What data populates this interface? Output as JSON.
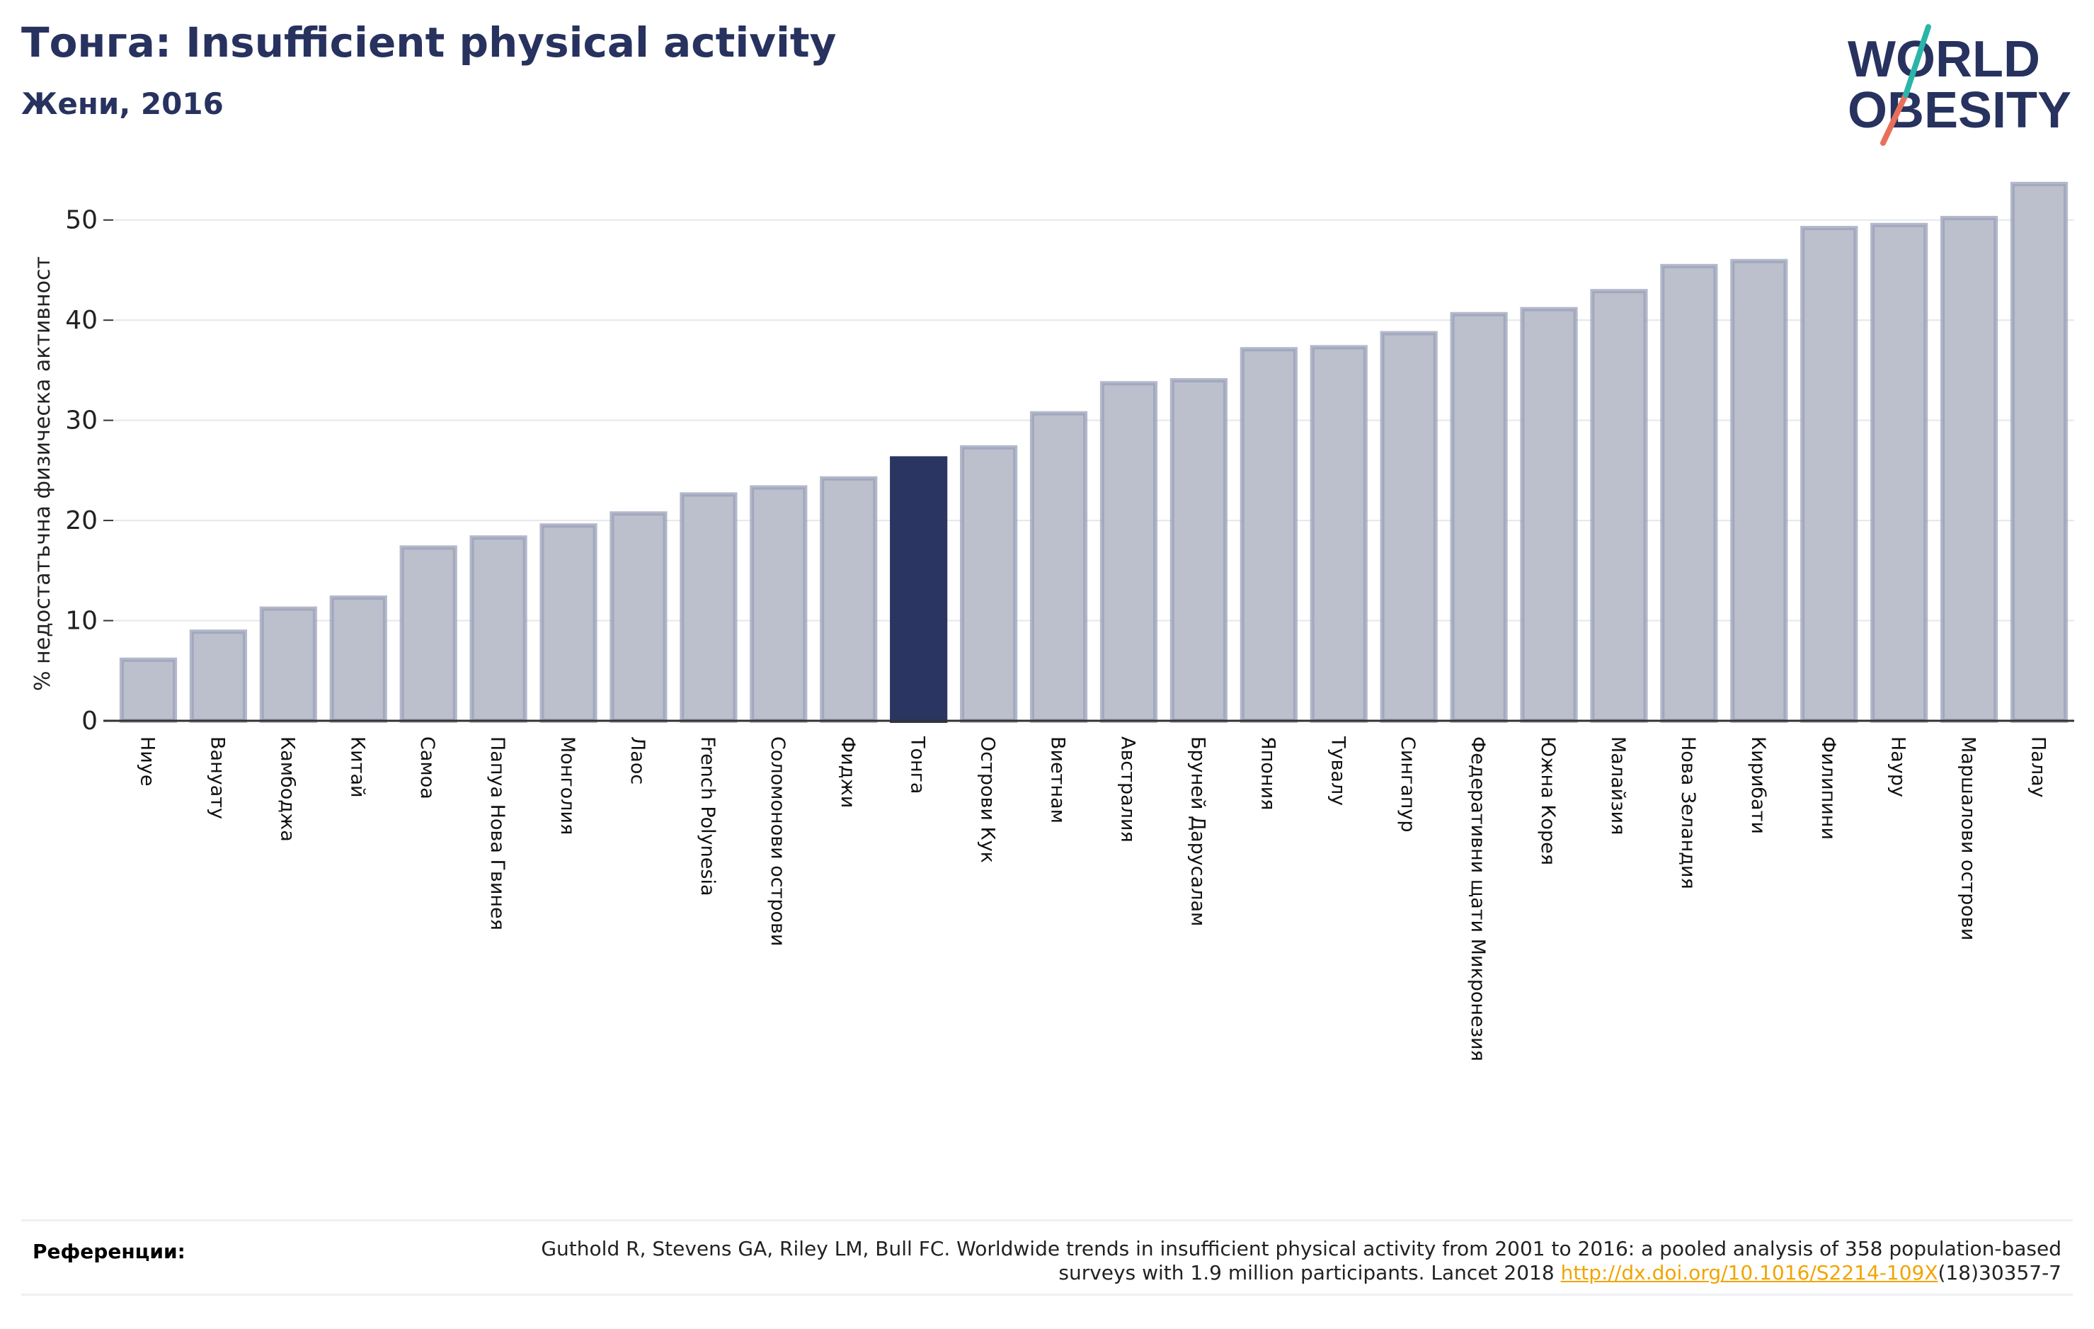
{
  "header": {
    "title": "Тонга: Insufficient physical activity",
    "subtitle": "Жени, 2016"
  },
  "logo": {
    "line1": "WORLD",
    "line2": "OBESITY"
  },
  "chart_data": {
    "type": "bar",
    "ylabel": "% недостатъчна физическа активност",
    "ylim": [
      0,
      55
    ],
    "yticks": [
      0,
      10,
      20,
      30,
      40,
      50
    ],
    "grid": true,
    "highlight": "Тонга",
    "categories": [
      "Ниуе",
      "Вануату",
      "Камбоджа",
      "Китай",
      "Самоа",
      "Папуа Нова Гвинея",
      "Монголия",
      "Лаос",
      "French Polynesia",
      "Соломонови острови",
      "Фиджи",
      "Тонга",
      "Острови Кук",
      "Виетнам",
      "Австралия",
      "Бруней Дарусалам",
      "Япония",
      "Тувалу",
      "Сингапур",
      "Федеративни щати Микронезия",
      "Южна Корея",
      "Малайзия",
      "Нова Зеландия",
      "Кирибати",
      "Филипини",
      "Науру",
      "Маршалови острови",
      "Палау"
    ],
    "values": [
      6.1,
      8.9,
      11.2,
      12.3,
      17.3,
      18.3,
      19.5,
      20.7,
      22.6,
      23.3,
      24.2,
      26.2,
      27.3,
      30.7,
      33.7,
      34.0,
      37.1,
      37.3,
      38.7,
      40.6,
      41.1,
      42.9,
      45.4,
      45.9,
      49.2,
      49.5,
      50.2,
      53.6
    ],
    "colors": {
      "bar": "#bcbfcc",
      "bar_edge": "#9aa0b8",
      "highlight": "#2a3561",
      "grid": "#e6e7ec",
      "axis": "#333333"
    }
  },
  "references": {
    "label": "Референции:",
    "text_before": "Guthold R, Stevens GA, Riley LM, Bull FC. Worldwide trends in insufficient physical activity from 2001 to 2016: a pooled analysis of 358 population-based surveys with 1.9 million participants. Lancet 2018 ",
    "link": "http://dx.doi.org/10.1016/S2214-109X",
    "text_after": "(18)30357-7"
  }
}
